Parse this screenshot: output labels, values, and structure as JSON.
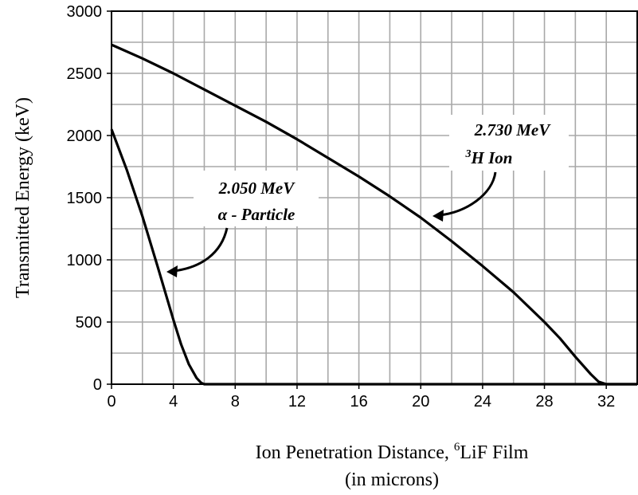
{
  "chart_data": {
    "type": "line",
    "title": "",
    "xlabel_main": "Ion Penetration Distance, ",
    "xlabel_sup": "6",
    "xlabel_tail": "LiF Film",
    "xlabel_line2": "(in microns)",
    "ylabel": "Transmitted Energy (keV)",
    "xlim": [
      0,
      34
    ],
    "ylim": [
      0,
      3000
    ],
    "x_ticks": [
      0,
      4,
      8,
      12,
      16,
      20,
      24,
      28,
      32
    ],
    "y_ticks": [
      0,
      500,
      1000,
      1500,
      2000,
      2500,
      3000
    ],
    "grid": true,
    "series": [
      {
        "x": [
          0,
          1,
          2,
          3,
          4,
          4.5,
          5,
          5.5,
          5.8,
          6,
          7,
          8,
          12,
          16,
          20,
          24,
          28,
          32,
          34
        ],
        "y": [
          2050,
          1720,
          1350,
          940,
          520,
          320,
          160,
          50,
          10,
          0,
          0,
          0,
          0,
          0,
          0,
          0,
          0,
          0,
          0
        ]
      },
      {
        "x": [
          0,
          2,
          4,
          6,
          8,
          10,
          12,
          14,
          16,
          18,
          20,
          22,
          24,
          26,
          28,
          29,
          30,
          31,
          31.5,
          32,
          33,
          34
        ],
        "y": [
          2730,
          2620,
          2500,
          2370,
          2240,
          2110,
          1970,
          1820,
          1670,
          1510,
          1340,
          1150,
          950,
          740,
          500,
          370,
          220,
          80,
          20,
          0,
          0,
          0
        ]
      }
    ],
    "annotations": [
      {
        "line1": "2.050 MeV",
        "line2_symbol": "α",
        "line2_text": " - Particle"
      },
      {
        "line1": "2.730 MeV",
        "line2_sup": "3",
        "line2_text": "H Ion"
      }
    ]
  }
}
